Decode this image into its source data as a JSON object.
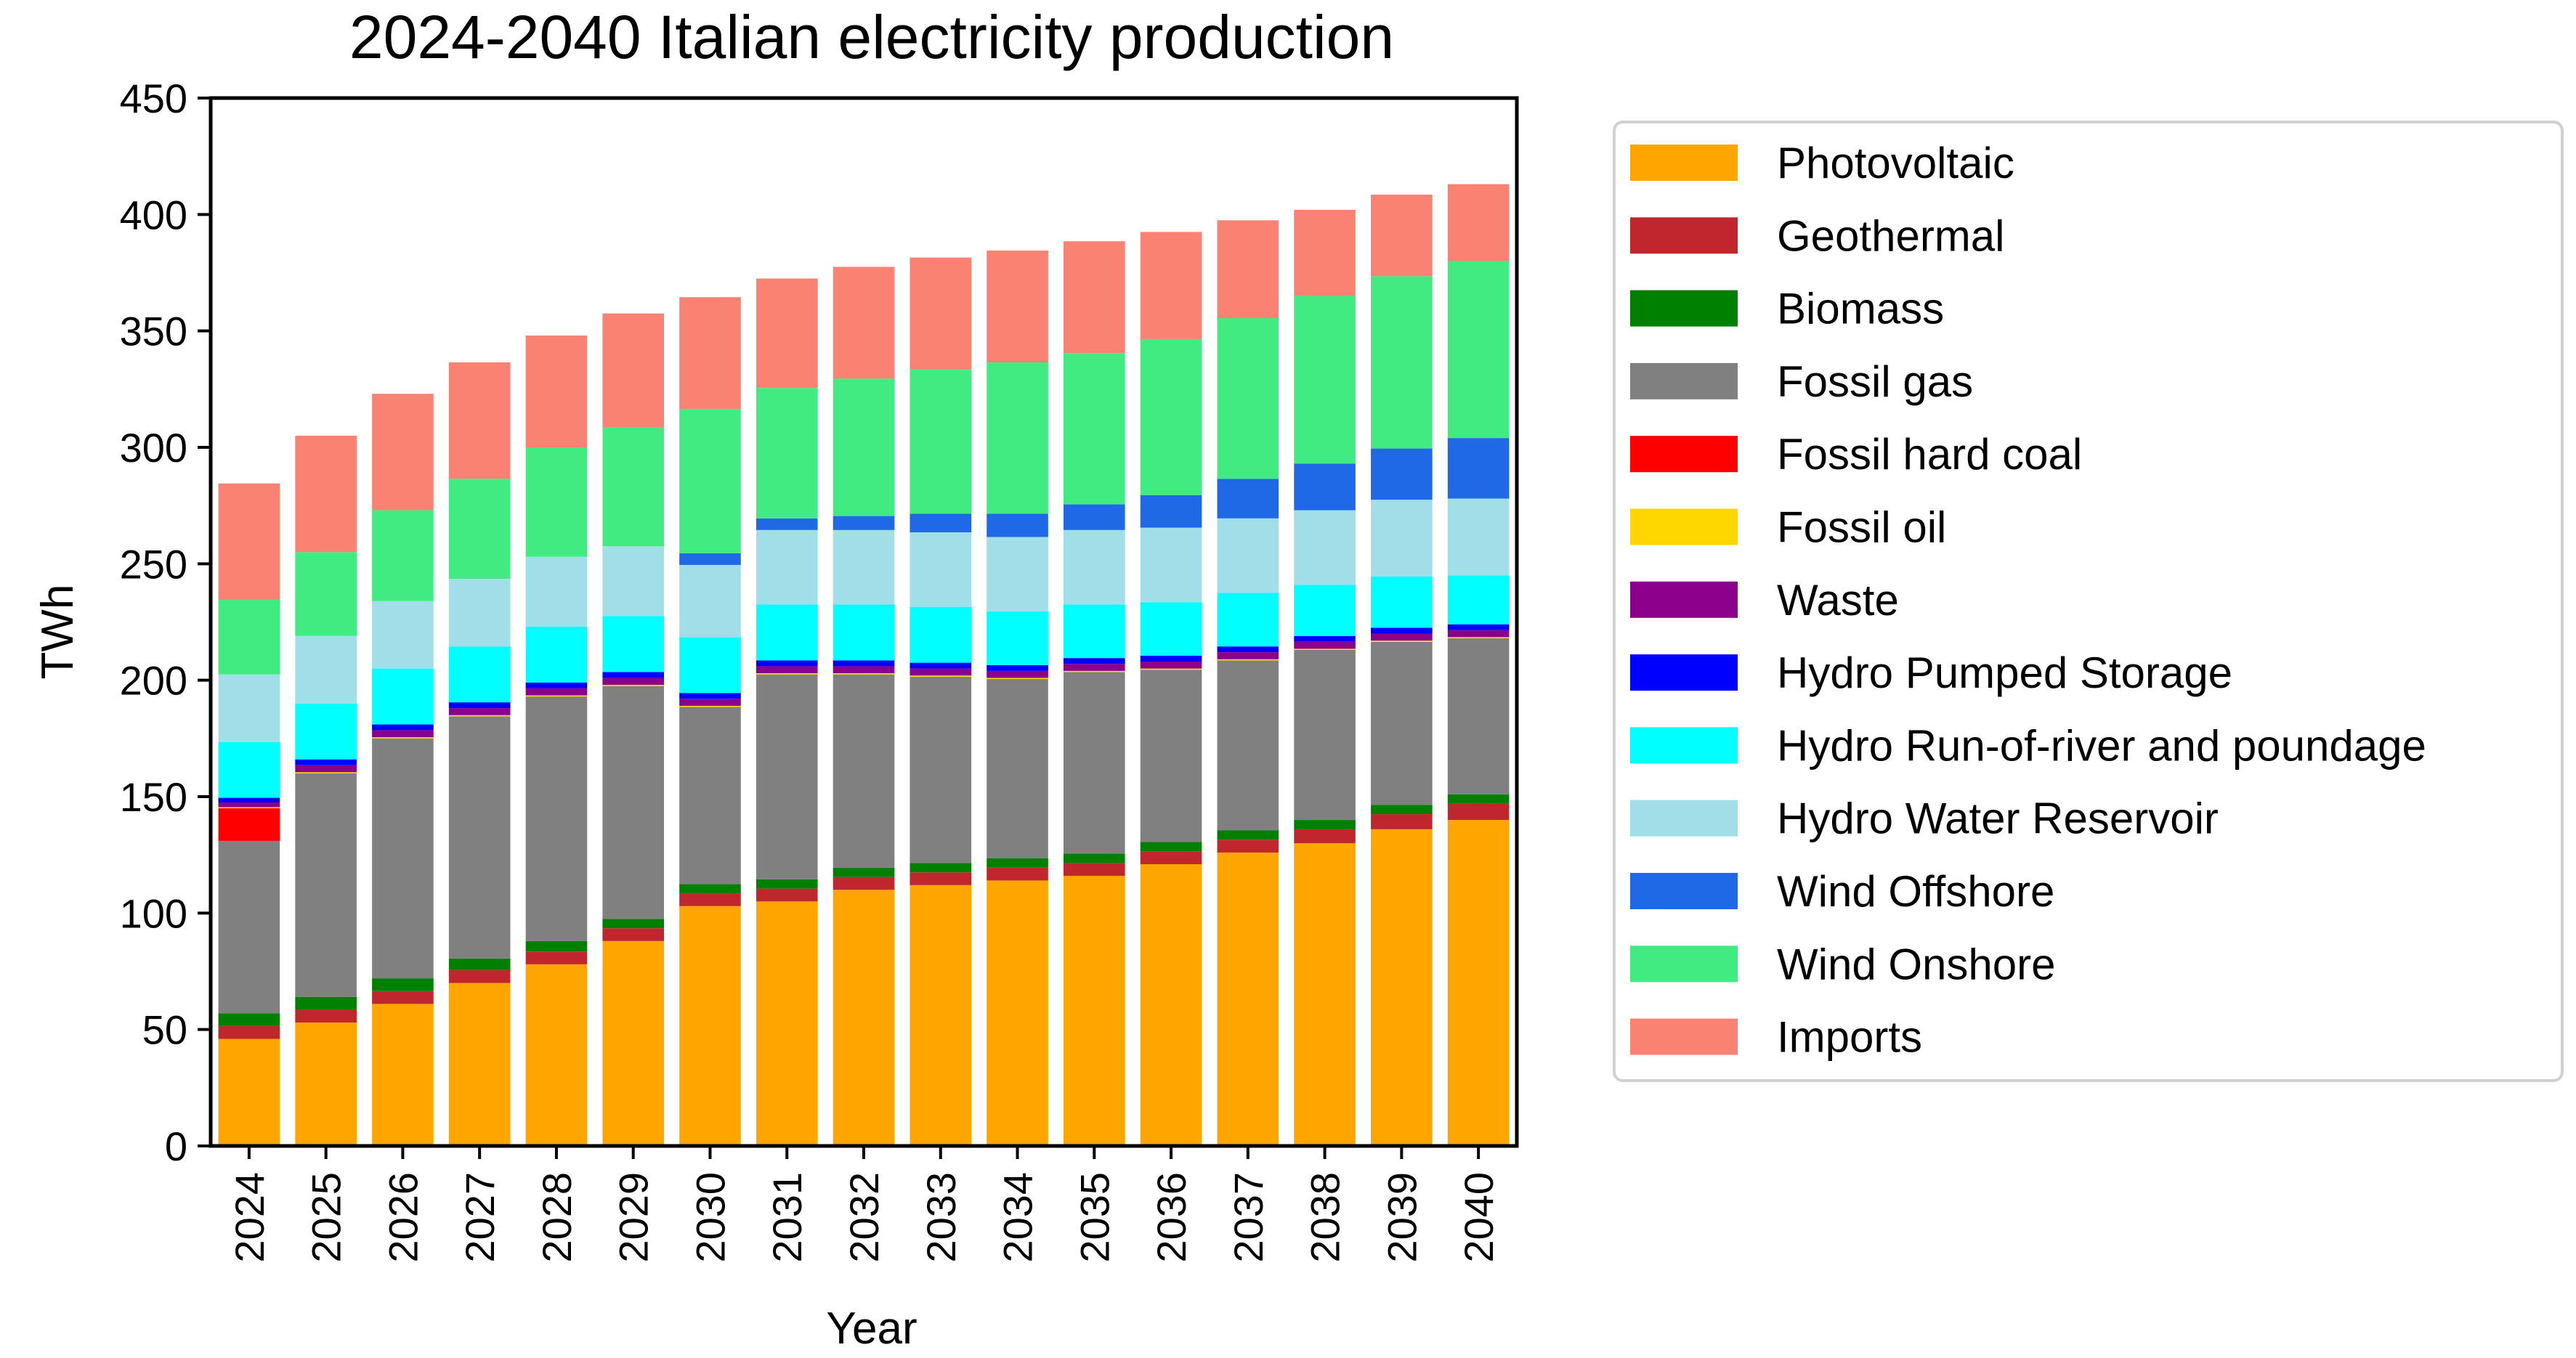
{
  "chart_data": {
    "type": "bar",
    "stacked": true,
    "title": "2024-2040 Italian electricity production",
    "xlabel": "Year",
    "ylabel": "TWh",
    "ylim": [
      0,
      450
    ],
    "yticks": [
      0,
      50,
      100,
      150,
      200,
      250,
      300,
      350,
      400,
      450
    ],
    "legend_position": "outside-right",
    "categories": [
      "2024",
      "2025",
      "2026",
      "2027",
      "2028",
      "2029",
      "2030",
      "2031",
      "2032",
      "2033",
      "2034",
      "2035",
      "2036",
      "2037",
      "2038",
      "2039",
      "2040"
    ],
    "series": [
      {
        "name": "Photovoltaic",
        "color": "#FFA500",
        "values": [
          46,
          53,
          61,
          70,
          78,
          88,
          103,
          105,
          110,
          112,
          114,
          116,
          121,
          126,
          130,
          136,
          140
        ]
      },
      {
        "name": "Geothermal",
        "color": "#C0272D",
        "values": [
          5.5,
          5.5,
          5.5,
          5.5,
          5.5,
          5.5,
          5.5,
          5.5,
          5.5,
          5.5,
          5.5,
          5.5,
          5.5,
          5.5,
          6,
          6.5,
          7
        ]
      },
      {
        "name": "Biomass",
        "color": "#008000",
        "values": [
          5.5,
          5.5,
          5.5,
          5,
          4.5,
          4,
          4,
          4,
          4,
          4,
          4,
          4,
          4,
          4,
          4,
          4,
          4
        ]
      },
      {
        "name": "Fossil gas",
        "color": "#808080",
        "values": [
          74,
          96,
          103,
          104,
          105,
          100,
          76,
          88,
          83,
          80,
          77,
          78,
          74,
          73,
          73,
          70,
          67
        ]
      },
      {
        "name": "Fossil hard coal",
        "color": "#FF0000",
        "values": [
          14,
          0,
          0,
          0,
          0,
          0,
          0,
          0,
          0,
          0,
          0,
          0,
          0,
          0,
          0,
          0,
          0
        ]
      },
      {
        "name": "Fossil oil",
        "color": "#FFD700",
        "values": [
          0.5,
          0.5,
          0.5,
          0.5,
          0.5,
          0.5,
          0.5,
          0.5,
          0.5,
          0.5,
          0.5,
          0.5,
          0.5,
          0.5,
          0.5,
          0.5,
          0.5
        ]
      },
      {
        "name": "Waste",
        "color": "#8B008B",
        "values": [
          2,
          3,
          3,
          3,
          3,
          3,
          3,
          3,
          3,
          3,
          3,
          3,
          3,
          3,
          3,
          3,
          3
        ]
      },
      {
        "name": "Hydro Pumped Storage",
        "color": "#0000FF",
        "values": [
          2,
          2.5,
          2.5,
          2.5,
          2.5,
          2.5,
          2.5,
          2.5,
          2.5,
          2.5,
          2.5,
          2.5,
          2.5,
          2.5,
          2.5,
          2.5,
          2.5
        ]
      },
      {
        "name": "Hydro Run-of-river and poundage",
        "color": "#00FFFF",
        "values": [
          24,
          24,
          24,
          24,
          24,
          24,
          24,
          24,
          24,
          24,
          23,
          23,
          23,
          23,
          22,
          22,
          21
        ]
      },
      {
        "name": "Hydro Water Reservoir",
        "color": "#A0DFE8",
        "values": [
          29,
          29,
          29,
          29,
          30,
          30,
          31,
          32,
          32,
          32,
          32,
          32,
          32,
          32,
          32,
          33,
          33
        ]
      },
      {
        "name": "Wind Offshore",
        "color": "#1F68E6",
        "values": [
          0,
          0,
          0,
          0,
          0,
          0,
          5,
          5,
          6,
          8,
          10,
          11,
          14,
          17,
          20,
          22,
          26
        ]
      },
      {
        "name": "Wind Onshore",
        "color": "#40EC82",
        "values": [
          32,
          36,
          39,
          43,
          47,
          51,
          62,
          56,
          59,
          62,
          65,
          65,
          67,
          69,
          72,
          74,
          76
        ]
      },
      {
        "name": "Imports",
        "color": "#FA8272",
        "values": [
          50,
          50,
          50,
          50,
          48,
          49,
          48,
          47,
          48,
          48,
          48,
          48,
          46,
          42,
          37,
          35,
          33
        ]
      }
    ]
  }
}
